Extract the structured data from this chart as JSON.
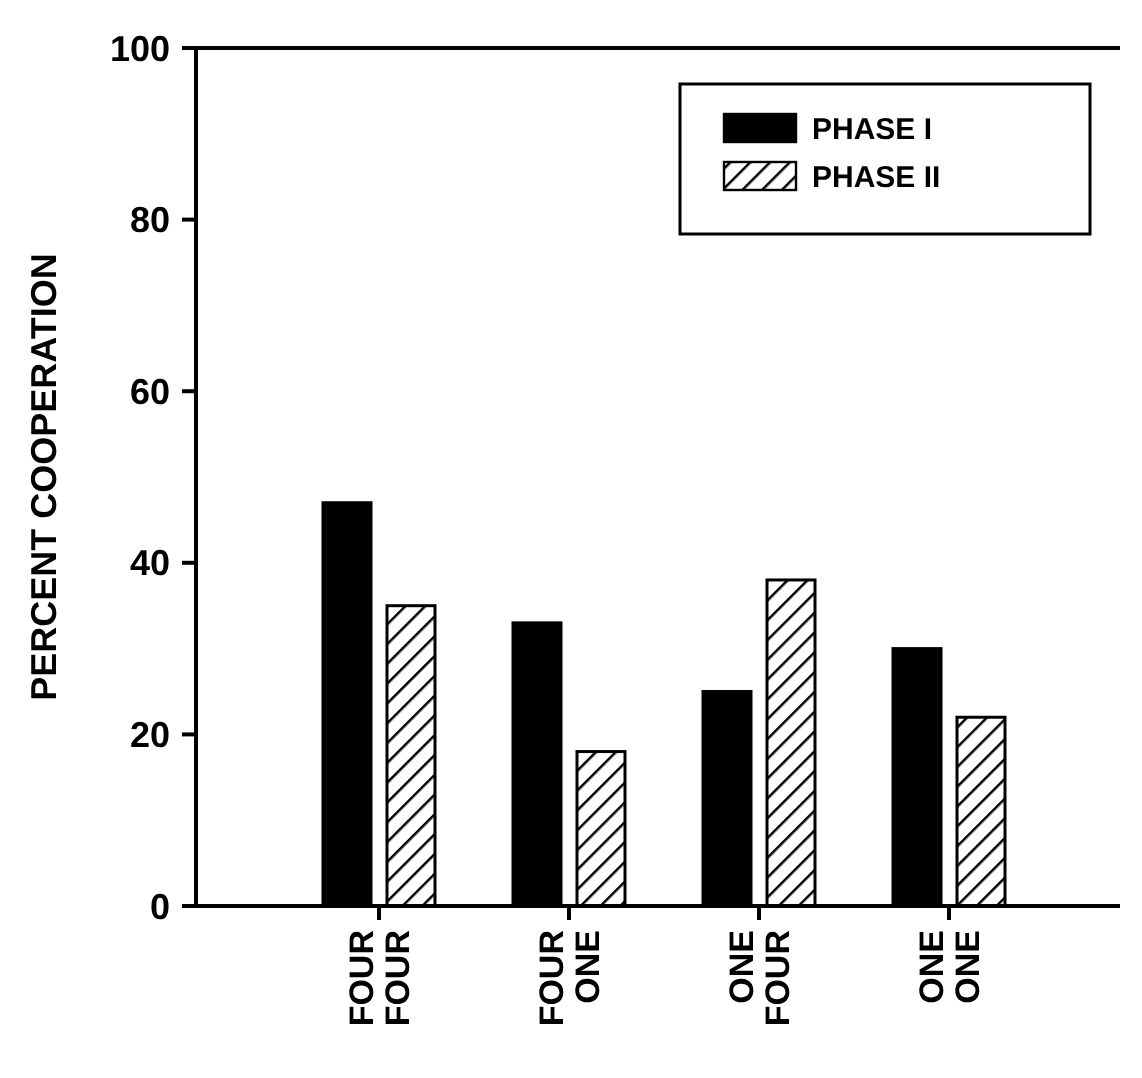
{
  "chart_data": {
    "type": "bar",
    "ylabel": "PERCENT COOPERATION",
    "categories": [
      "FOUR FOUR",
      "FOUR ONE",
      "ONE FOUR",
      "ONE ONE"
    ],
    "series": [
      {
        "name": "PHASE I",
        "color": "#000000",
        "values": [
          47,
          33,
          25,
          30
        ]
      },
      {
        "name": "PHASE II",
        "color": "#000000",
        "values": [
          35,
          18,
          38,
          22
        ]
      }
    ],
    "ylim": [
      0,
      100
    ],
    "yticks": [
      0,
      20,
      40,
      60,
      80,
      100
    ],
    "legend": "top right"
  }
}
